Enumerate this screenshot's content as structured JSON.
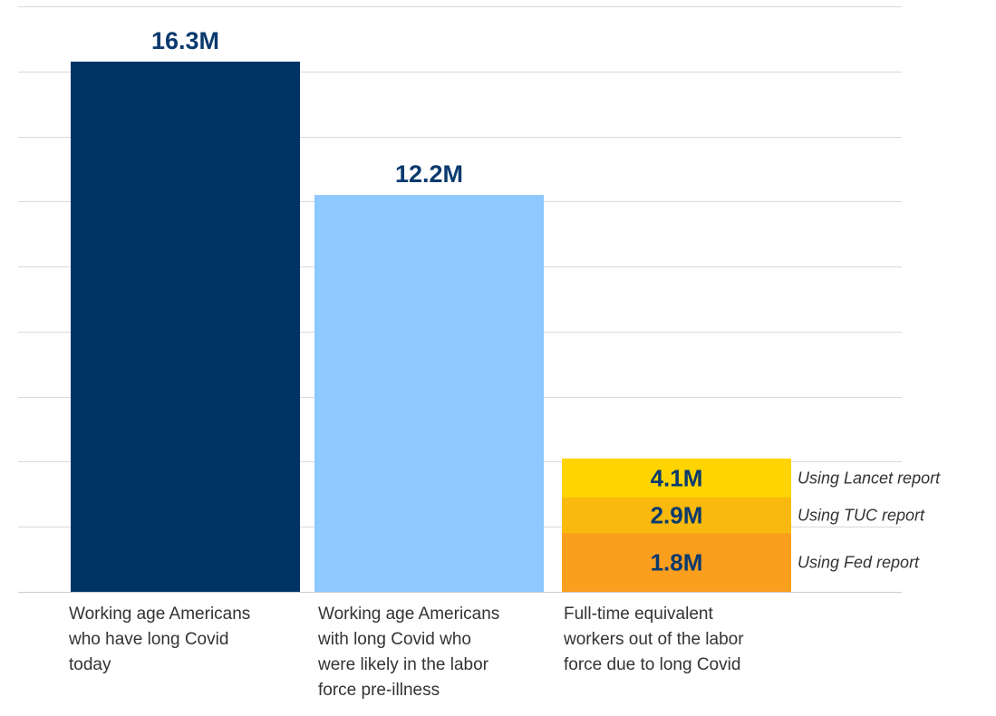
{
  "chart_data": {
    "type": "bar",
    "title": "",
    "xlabel": "",
    "ylabel": "",
    "ylim": [
      0,
      18
    ],
    "grid": true,
    "categories": [
      "Working age Americans who have long Covid today",
      "Working age Americans with long Covid who were likely in the labor force pre-illness",
      "Full-time equivalent workers out of the labor force due to long Covid"
    ],
    "bars": [
      {
        "value": 16.3,
        "label": "16.3M",
        "color": "#003366"
      },
      {
        "value": 12.2,
        "label": "12.2M",
        "color": "#8DC8FF"
      }
    ],
    "estimates": [
      {
        "value": 4.1,
        "label": "4.1M",
        "note": "Using Lancet report",
        "color": "#FFD400"
      },
      {
        "value": 2.9,
        "label": "2.9M",
        "note": "Using TUC report",
        "color": "#F9B90E"
      },
      {
        "value": 1.8,
        "label": "1.8M",
        "note": "Using Fed report",
        "color": "#FA9E1E"
      }
    ],
    "colors": {
      "grid": "#d9d9d9",
      "value_label": "#0a3a6e",
      "note": "#333333"
    }
  },
  "category_labels": [
    "Working age Americans\nwho have long Covid\ntoday",
    "Working age Americans\nwith long Covid who\nwere likely in the labor\nforce pre-illness",
    "Full-time equivalent\nworkers out of the labor\nforce due to long Covid"
  ]
}
